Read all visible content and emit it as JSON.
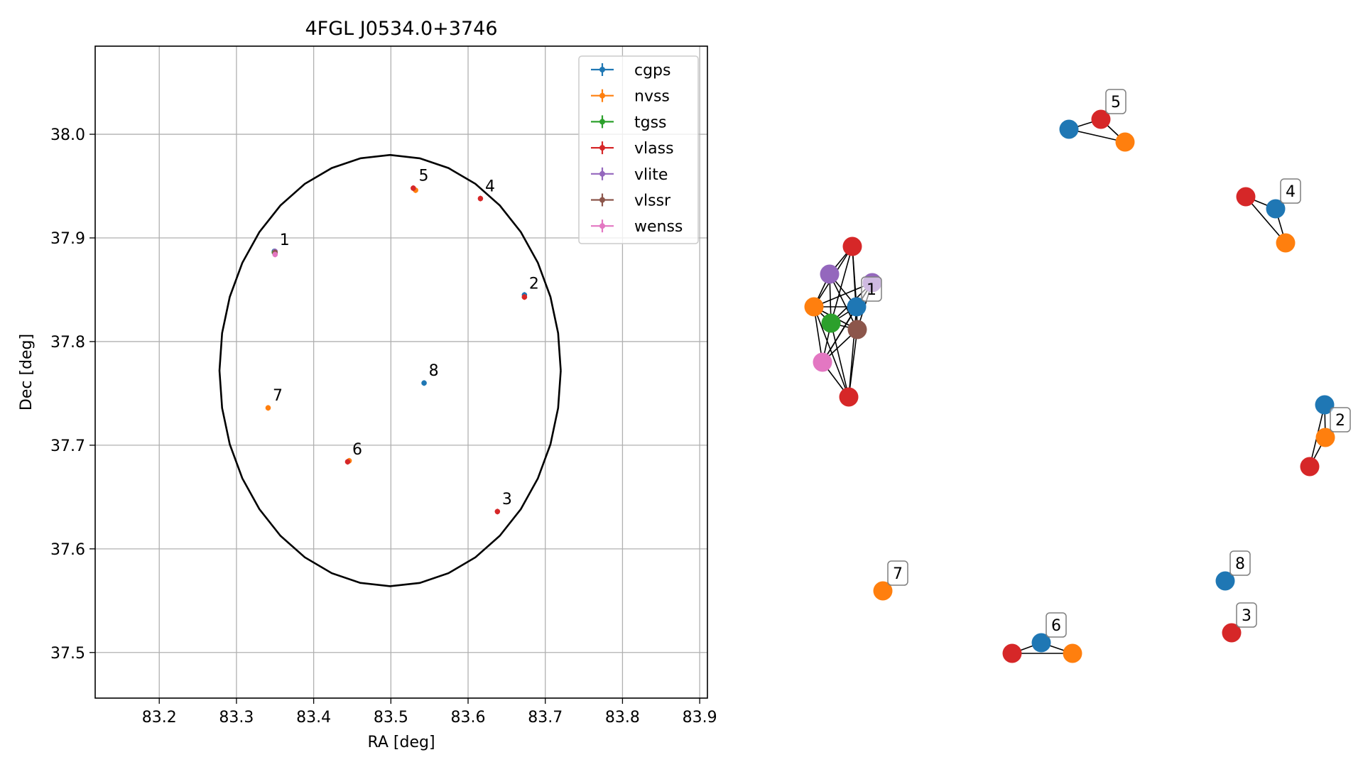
{
  "chart_data": [
    {
      "type": "scatter",
      "title": "4FGL J0534.0+3746",
      "xlabel": "RA [deg]",
      "ylabel": "Dec [deg]",
      "xlim": [
        83.117,
        83.91
      ],
      "ylim": [
        37.456,
        38.085
      ],
      "xticks": [
        83.2,
        83.3,
        83.4,
        83.5,
        83.6,
        83.7,
        83.8,
        83.9
      ],
      "xtick_labels": [
        "83.2",
        "83.3",
        "83.4",
        "83.5",
        "83.6",
        "83.7",
        "83.8",
        "83.9"
      ],
      "yticks": [
        37.5,
        37.6,
        37.7,
        37.8,
        37.9,
        38.0
      ],
      "ytick_labels": [
        "37.5",
        "37.6",
        "37.7",
        "37.8",
        "37.9",
        "38.0"
      ],
      "grid": true,
      "legend_position": "top-right",
      "series": [
        {
          "name": "cgps",
          "color": "#1f77b4",
          "x": [
            83.349,
            83.673,
            83.543
          ],
          "y": [
            37.887,
            37.845,
            37.76
          ]
        },
        {
          "name": "nvss",
          "color": "#ff7f0e",
          "x": [
            83.532,
            83.341,
            83.446,
            83.35,
            83.673
          ],
          "y": [
            37.946,
            37.736,
            37.685,
            37.885,
            37.843
          ]
        },
        {
          "name": "tgss",
          "color": "#2ca02c",
          "x": [
            83.349
          ],
          "y": [
            37.886
          ]
        },
        {
          "name": "vlass",
          "color": "#d62728",
          "x": [
            83.529,
            83.616,
            83.673,
            83.444,
            83.638,
            83.35
          ],
          "y": [
            37.948,
            37.938,
            37.843,
            37.684,
            37.636,
            37.885
          ]
        },
        {
          "name": "vlite",
          "color": "#9467bd",
          "x": [
            83.35
          ],
          "y": [
            37.887
          ]
        },
        {
          "name": "vlssr",
          "color": "#8c564b",
          "x": [
            83.35
          ],
          "y": [
            37.886
          ]
        },
        {
          "name": "wenss",
          "color": "#e377c2",
          "x": [
            83.35
          ],
          "y": [
            37.884
          ]
        }
      ],
      "annotations": [
        {
          "text": "1",
          "x": 83.356,
          "y": 37.893
        },
        {
          "text": "2",
          "x": 83.679,
          "y": 37.851
        },
        {
          "text": "3",
          "x": 83.644,
          "y": 37.643
        },
        {
          "text": "4",
          "x": 83.622,
          "y": 37.945
        },
        {
          "text": "5",
          "x": 83.536,
          "y": 37.955
        },
        {
          "text": "6",
          "x": 83.45,
          "y": 37.691
        },
        {
          "text": "7",
          "x": 83.347,
          "y": 37.743
        },
        {
          "text": "8",
          "x": 83.549,
          "y": 37.767
        }
      ],
      "ellipse": {
        "center": [
          83.499,
          37.772
        ],
        "ra_half_width": 0.221,
        "dec_half_height": 0.208,
        "color": "#000000"
      }
    },
    {
      "type": "network",
      "nodes": [
        {
          "id": "c1",
          "color": "#1f77b4"
        },
        {
          "id": "n1",
          "color": "#ff7f0e"
        },
        {
          "id": "t1",
          "color": "#2ca02c"
        },
        {
          "id": "r1a",
          "color": "#d62728"
        },
        {
          "id": "r1b",
          "color": "#d62728"
        },
        {
          "id": "p1a",
          "color": "#9467bd"
        },
        {
          "id": "p1b",
          "color": "#9467bd"
        },
        {
          "id": "b1",
          "color": "#8c564b"
        },
        {
          "id": "w1",
          "color": "#e377c2"
        },
        {
          "id": "c5",
          "color": "#1f77b4"
        },
        {
          "id": "r5",
          "color": "#d62728"
        },
        {
          "id": "n5",
          "color": "#ff7f0e"
        },
        {
          "id": "r4",
          "color": "#d62728"
        },
        {
          "id": "c4",
          "color": "#1f77b4"
        },
        {
          "id": "n4",
          "color": "#ff7f0e"
        },
        {
          "id": "c2",
          "color": "#1f77b4"
        },
        {
          "id": "n2",
          "color": "#ff7f0e"
        },
        {
          "id": "r2",
          "color": "#d62728"
        },
        {
          "id": "n7",
          "color": "#ff7f0e"
        },
        {
          "id": "r6",
          "color": "#d62728"
        },
        {
          "id": "c6",
          "color": "#1f77b4"
        },
        {
          "id": "n6",
          "color": "#ff7f0e"
        },
        {
          "id": "c8",
          "color": "#1f77b4"
        },
        {
          "id": "r3",
          "color": "#d62728"
        }
      ],
      "edges": [
        [
          "c1",
          "n1"
        ],
        [
          "c1",
          "t1"
        ],
        [
          "c1",
          "r1a"
        ],
        [
          "c1",
          "r1b"
        ],
        [
          "c1",
          "p1a"
        ],
        [
          "c1",
          "p1b"
        ],
        [
          "c1",
          "b1"
        ],
        [
          "c1",
          "w1"
        ],
        [
          "n1",
          "t1"
        ],
        [
          "n1",
          "r1a"
        ],
        [
          "n1",
          "r1b"
        ],
        [
          "n1",
          "p1a"
        ],
        [
          "n1",
          "p1b"
        ],
        [
          "n1",
          "b1"
        ],
        [
          "n1",
          "w1"
        ],
        [
          "t1",
          "r1a"
        ],
        [
          "t1",
          "r1b"
        ],
        [
          "t1",
          "p1a"
        ],
        [
          "t1",
          "p1b"
        ],
        [
          "t1",
          "b1"
        ],
        [
          "t1",
          "w1"
        ],
        [
          "r1a",
          "p1a"
        ],
        [
          "r1a",
          "b1"
        ],
        [
          "r1b",
          "b1"
        ],
        [
          "r1b",
          "w1"
        ],
        [
          "p1a",
          "b1"
        ],
        [
          "p1b",
          "b1"
        ],
        [
          "p1b",
          "w1"
        ],
        [
          "b1",
          "w1"
        ],
        [
          "c5",
          "r5"
        ],
        [
          "c5",
          "n5"
        ],
        [
          "r5",
          "n5"
        ],
        [
          "r4",
          "c4"
        ],
        [
          "r4",
          "n4"
        ],
        [
          "c4",
          "n4"
        ],
        [
          "c2",
          "n2"
        ],
        [
          "c2",
          "r2"
        ],
        [
          "n2",
          "r2"
        ],
        [
          "r6",
          "c6"
        ],
        [
          "r6",
          "n6"
        ],
        [
          "c6",
          "n6"
        ]
      ],
      "labels": [
        {
          "text": "1",
          "node": "c1"
        },
        {
          "text": "5",
          "node": "r5"
        },
        {
          "text": "4",
          "node": "c4"
        },
        {
          "text": "2",
          "node": "n2"
        },
        {
          "text": "7",
          "node": "n7"
        },
        {
          "text": "6",
          "node": "c6"
        },
        {
          "text": "8",
          "node": "c8"
        },
        {
          "text": "3",
          "node": "r3"
        }
      ]
    }
  ]
}
